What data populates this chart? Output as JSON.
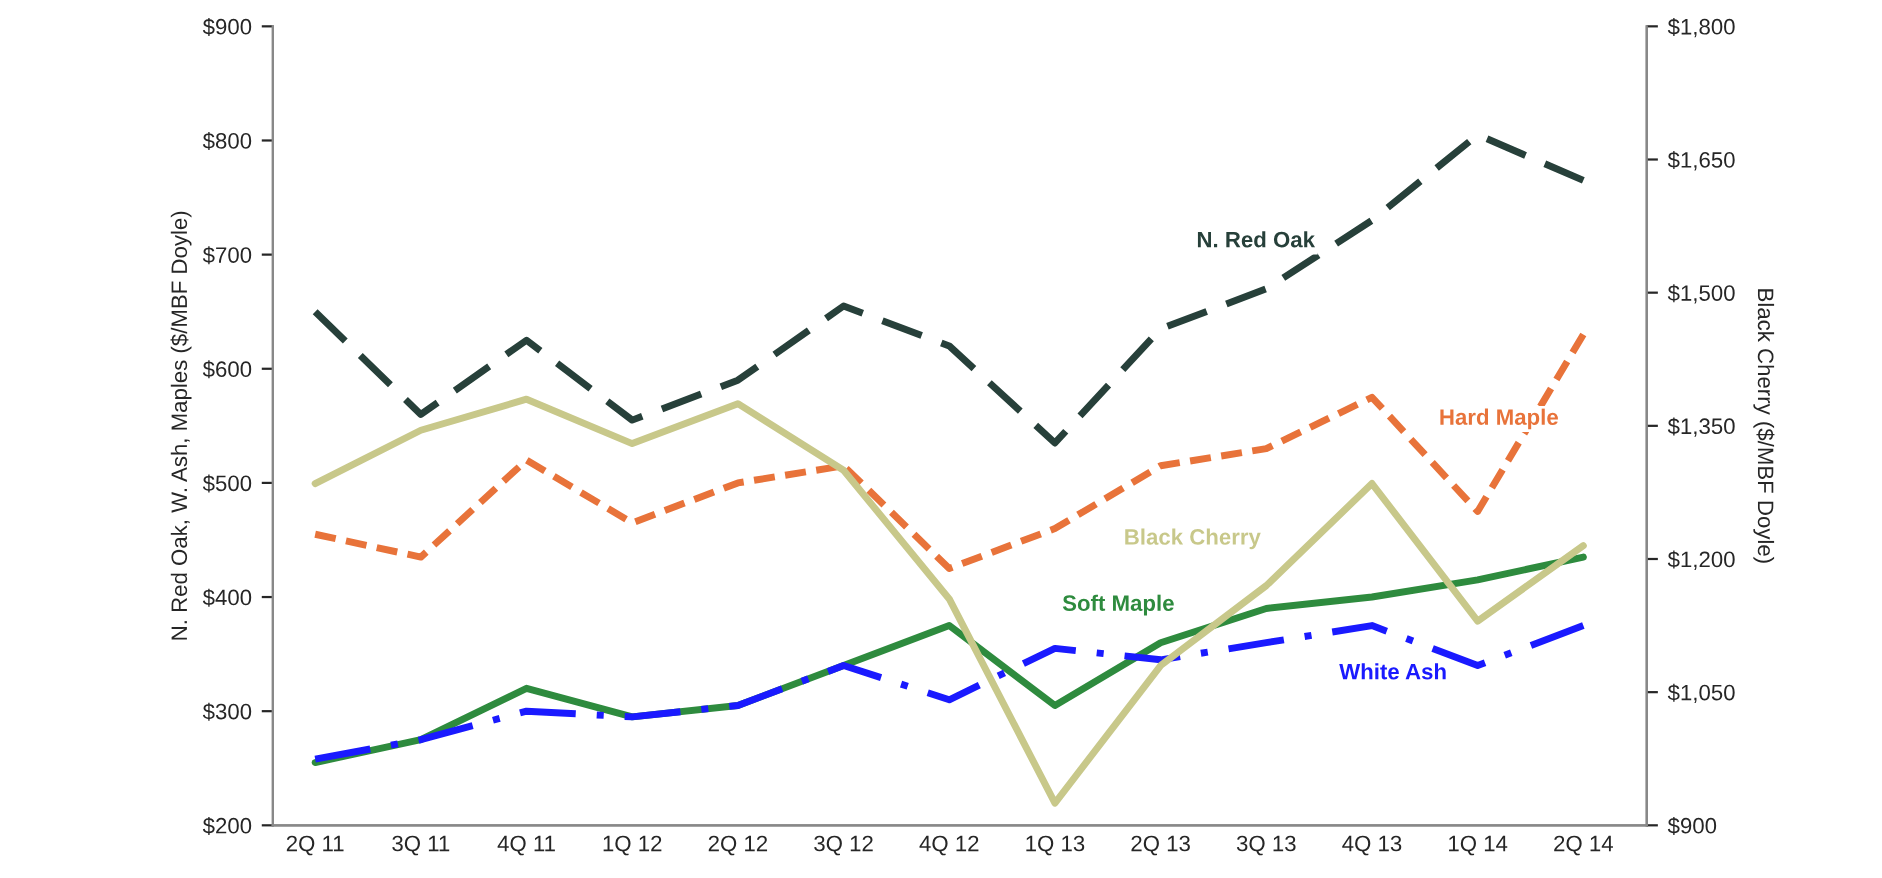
{
  "chart_data": {
    "type": "line",
    "ylabel": "N. Red Oak, W. Ash, Maples ($/MBF Doyle)",
    "y2label": "Black Cherry ($/MBF Doyle)",
    "categories": [
      "2Q 11",
      "3Q 11",
      "4Q 11",
      "1Q 12",
      "2Q 12",
      "3Q 12",
      "4Q 12",
      "1Q 13",
      "2Q 13",
      "3Q 13",
      "4Q 13",
      "1Q 14",
      "2Q 14"
    ],
    "series": [
      {
        "name": "N. Red Oak",
        "color": "#27403a",
        "line_style": "dashed",
        "values": [
          650,
          560,
          625,
          555,
          590,
          655,
          620,
          535,
          635,
          670,
          730,
          805,
          765
        ]
      },
      {
        "name": "Hard Maple",
        "color": "#e8733a",
        "line_style": "dashed",
        "values": [
          455,
          435,
          520,
          465,
          500,
          515,
          425,
          460,
          515,
          530,
          575,
          475,
          630
        ]
      },
      {
        "name": "Black Cherry",
        "color": "#c8c88a",
        "line_style": "solid",
        "axis": "y2",
        "values": [
          1285,
          1345,
          1380,
          1330,
          1375,
          1300,
          1155,
          925,
          1080,
          1170,
          1285,
          1130,
          1215
        ]
      },
      {
        "name": "Soft Maple",
        "color": "#2e8b3e",
        "line_style": "solid",
        "values": [
          255,
          275,
          320,
          295,
          305,
          340,
          375,
          305,
          360,
          390,
          400,
          415,
          435
        ]
      },
      {
        "name": "White Ash",
        "color": "#1a1aff",
        "line_style": "dashed",
        "values": [
          258,
          275,
          300,
          295,
          305,
          340,
          310,
          355,
          345,
          360,
          375,
          340,
          375
        ]
      }
    ],
    "ylim": [
      200,
      900
    ],
    "yticks": [
      {
        "value": 200,
        "label": "$200"
      },
      {
        "value": 300,
        "label": "$300"
      },
      {
        "value": 400,
        "label": "$400"
      },
      {
        "value": 500,
        "label": "$500"
      },
      {
        "value": 600,
        "label": "$600"
      },
      {
        "value": 700,
        "label": "$700"
      },
      {
        "value": 800,
        "label": "$800"
      },
      {
        "value": 900,
        "label": "$900"
      }
    ],
    "y2lim": [
      900,
      1800
    ],
    "y2ticks": [
      {
        "value": 900,
        "label": "$900"
      },
      {
        "value": 1050,
        "label": "$1,050"
      },
      {
        "value": 1200,
        "label": "$1,200"
      },
      {
        "value": 1350,
        "label": "$1,350"
      },
      {
        "value": 1500,
        "label": "$1,500"
      },
      {
        "value": 1650,
        "label": "$1,650"
      },
      {
        "value": 1800,
        "label": "$1,800"
      }
    ],
    "grid": false,
    "legend": false
  }
}
